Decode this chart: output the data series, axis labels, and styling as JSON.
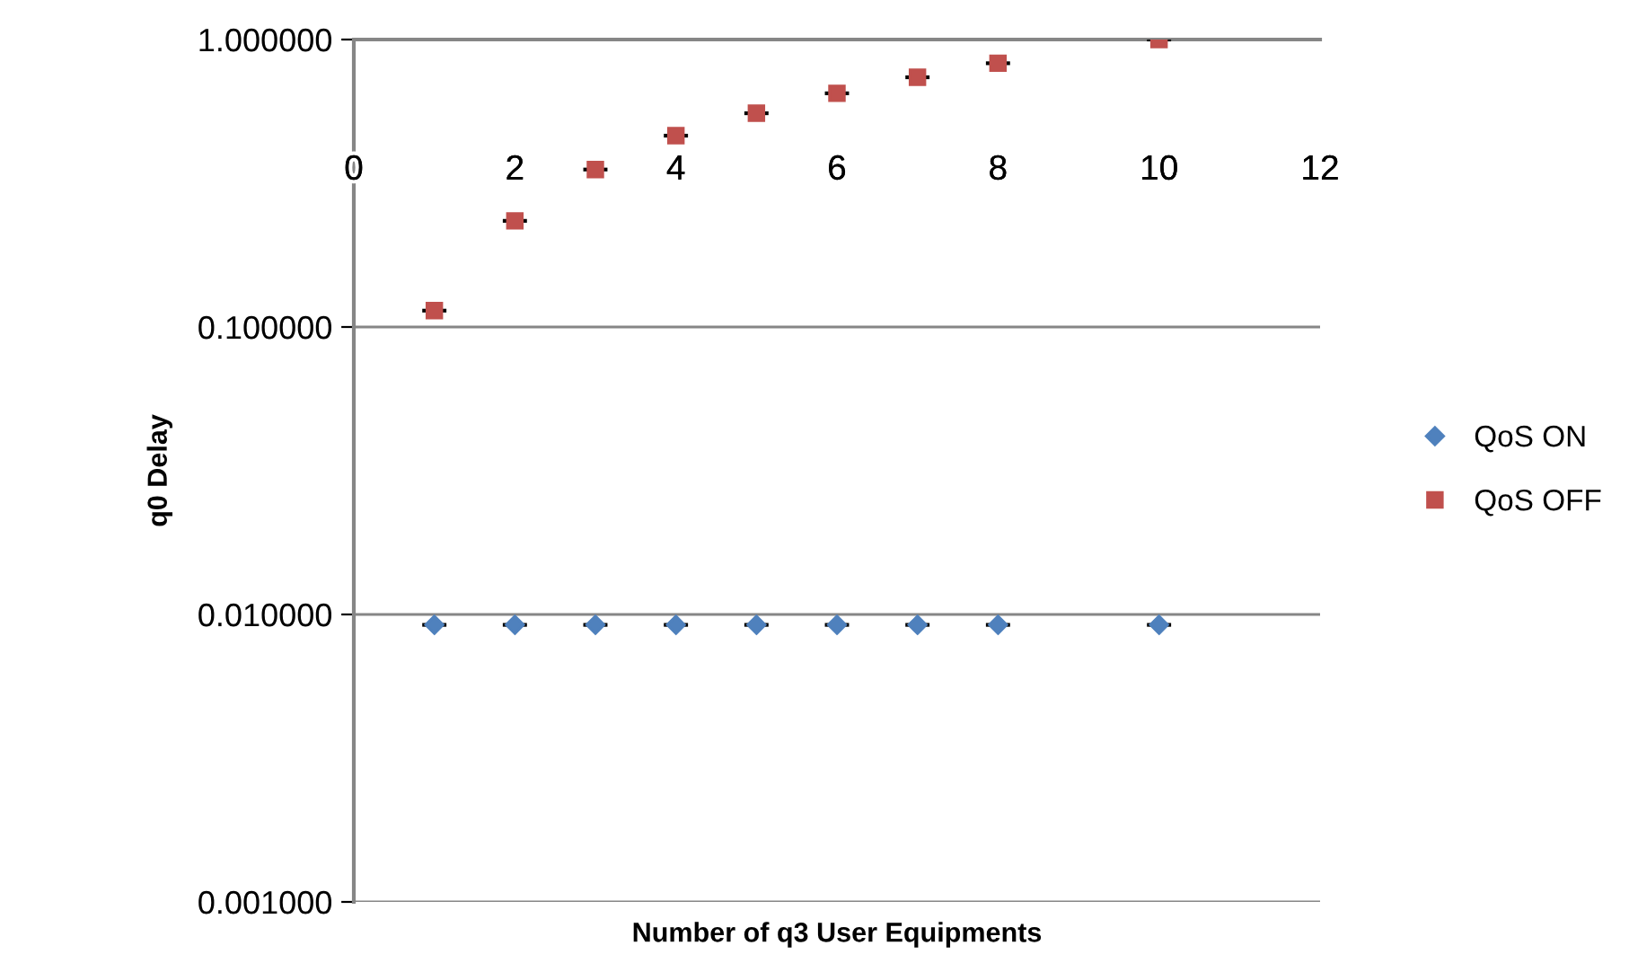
{
  "chart_data": {
    "type": "scatter",
    "xlabel": "Number of q3 User Equipments",
    "ylabel": "q0 Delay",
    "log": "y",
    "xlim": [
      0,
      12
    ],
    "xticks": [
      0,
      2,
      4,
      6,
      8,
      10,
      12
    ],
    "ylim": [
      0.001,
      1
    ],
    "yticks": [
      {
        "value": 0.001,
        "label": "0.001000"
      },
      {
        "value": 0.01,
        "label": "0.010000"
      },
      {
        "value": 0.1,
        "label": "0.100000"
      },
      {
        "value": 1,
        "label": "1.000000"
      }
    ],
    "grid": "y",
    "legend": "right",
    "x": [
      1,
      2,
      3,
      4,
      5,
      6,
      7,
      8,
      10
    ],
    "series": [
      {
        "name": "QoS ON",
        "color": "#4f81bd",
        "marker": "diamond",
        "values": [
          0.0092,
          0.0092,
          0.0092,
          0.0092,
          0.0092,
          0.0092,
          0.0092,
          0.0092,
          0.0092
        ],
        "xerrors": [
          0.15,
          0.15,
          0.15,
          0.15,
          0.15,
          0.15,
          0.15,
          0.15,
          0.15
        ]
      },
      {
        "name": "QoS OFF",
        "color": "#c0504d",
        "marker": "square",
        "values": [
          0.114,
          0.234,
          0.353,
          0.463,
          0.554,
          0.65,
          0.739,
          0.827,
          1.0
        ],
        "xerrors": [
          0.15,
          0.15,
          0.15,
          0.15,
          0.15,
          0.15,
          0.15,
          0.15,
          0.15
        ]
      }
    ]
  }
}
